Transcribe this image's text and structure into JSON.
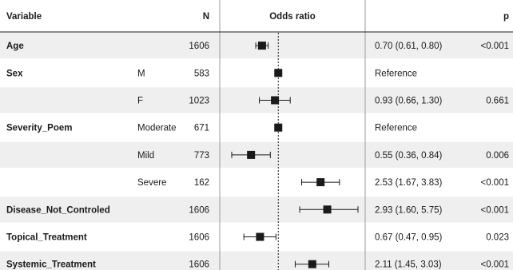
{
  "chart_data": {
    "type": "forest",
    "headers": {
      "variable": "Variable",
      "n": "N",
      "odds_ratio": "Odds ratio",
      "p": "p"
    },
    "reference_line": 1,
    "rows": [
      {
        "variable": "Age",
        "level": "",
        "n": "1606",
        "or": 0.7,
        "lower": 0.61,
        "upper": 0.8,
        "ci_text": "0.70 (0.61, 0.80)",
        "p": "<0.001",
        "reference": false
      },
      {
        "variable": "Sex",
        "level": "M",
        "n": "583",
        "or": 1,
        "lower": null,
        "upper": null,
        "ci_text": "Reference",
        "p": "",
        "reference": true
      },
      {
        "variable": "",
        "level": "F",
        "n": "1023",
        "or": 0.93,
        "lower": 0.66,
        "upper": 1.3,
        "ci_text": "0.93 (0.66, 1.30)",
        "p": "0.661",
        "reference": false
      },
      {
        "variable": "Severity_Poem",
        "level": "Moderate",
        "n": "671",
        "or": 1,
        "lower": null,
        "upper": null,
        "ci_text": "Reference",
        "p": "",
        "reference": true
      },
      {
        "variable": "",
        "level": "Mild",
        "n": "773",
        "or": 0.55,
        "lower": 0.36,
        "upper": 0.84,
        "ci_text": "0.55 (0.36, 0.84)",
        "p": "0.006",
        "reference": false
      },
      {
        "variable": "",
        "level": "Severe",
        "n": "162",
        "or": 2.53,
        "lower": 1.67,
        "upper": 3.83,
        "ci_text": "2.53 (1.67, 3.83)",
        "p": "<0.001",
        "reference": false
      },
      {
        "variable": "Disease_Not_Controled",
        "level": "",
        "n": "1606",
        "or": 2.93,
        "lower": 1.6,
        "upper": 5.75,
        "ci_text": "2.93 (1.60, 5.75)",
        "p": "<0.001",
        "reference": false
      },
      {
        "variable": "Topical_Treatment",
        "level": "",
        "n": "1606",
        "or": 0.67,
        "lower": 0.47,
        "upper": 0.95,
        "ci_text": "0.67 (0.47, 0.95)",
        "p": "0.023",
        "reference": false
      },
      {
        "variable": "Systemic_Treatment",
        "level": "",
        "n": "1606",
        "or": 2.11,
        "lower": 1.45,
        "upper": 3.03,
        "ci_text": "2.11 (1.45, 3.03)",
        "p": "<0.001",
        "reference": false
      }
    ]
  },
  "colors": {
    "band": "#efefef",
    "ink": "#1a1a1a",
    "rule": "#9a9a9a"
  }
}
